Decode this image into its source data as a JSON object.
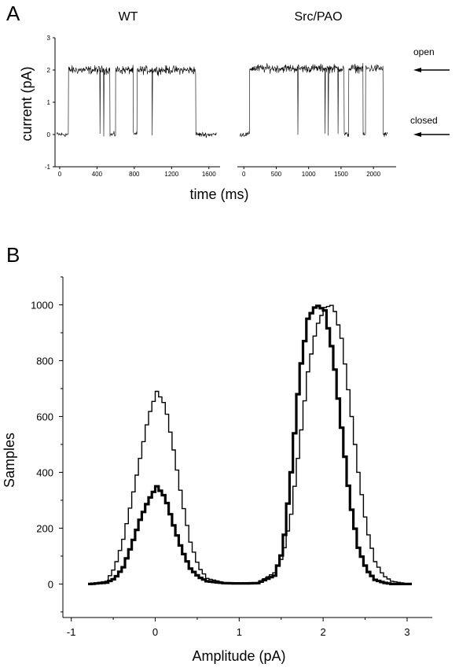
{
  "chart_data": [
    {
      "panel": "A",
      "type": "line",
      "ylabel": "current (pA)",
      "xlabel": "time (ms)",
      "ylim": [
        -1,
        3
      ],
      "yticks": [
        -1,
        0,
        1,
        2,
        3
      ],
      "state_labels": {
        "open": "open",
        "closed": "closed"
      },
      "state_levels_pA": {
        "open": 2,
        "closed": 0
      },
      "traces": [
        {
          "name": "WT",
          "xlim": [
            -50,
            1720
          ],
          "xticks": [
            0,
            400,
            800,
            1200,
            1600
          ],
          "open_level": 2.0,
          "closed_level": 0.0,
          "segments": [
            {
              "start": -30,
              "end": 95,
              "state": "closed"
            },
            {
              "start": 95,
              "end": 540,
              "state": "open"
            },
            {
              "start": 540,
              "end": 600,
              "state": "closed"
            },
            {
              "start": 600,
              "end": 790,
              "state": "open"
            },
            {
              "start": 790,
              "end": 830,
              "state": "closed"
            },
            {
              "start": 830,
              "end": 1460,
              "state": "open"
            },
            {
              "start": 1460,
              "end": 1680,
              "state": "closed"
            }
          ],
          "brief_closures": [
            430,
            470,
            990
          ]
        },
        {
          "name": "Src/PAO",
          "xlim": [
            -100,
            2350
          ],
          "xticks": [
            0,
            500,
            1000,
            1500,
            2000
          ],
          "open_level": 2.05,
          "closed_level": 0.0,
          "segments": [
            {
              "start": -60,
              "end": 90,
              "state": "closed"
            },
            {
              "start": 90,
              "end": 1550,
              "state": "open"
            },
            {
              "start": 1550,
              "end": 1620,
              "state": "closed"
            },
            {
              "start": 1620,
              "end": 1840,
              "state": "open"
            },
            {
              "start": 1840,
              "end": 1880,
              "state": "closed"
            },
            {
              "start": 1880,
              "end": 2150,
              "state": "open"
            },
            {
              "start": 2150,
              "end": 2220,
              "state": "closed"
            }
          ],
          "brief_closures": [
            830,
            1250,
            1300,
            1450
          ]
        }
      ]
    },
    {
      "panel": "B",
      "type": "line",
      "step": true,
      "xlabel": "Amplitude (pA)",
      "ylabel": "Samples",
      "xlim": [
        -1.1,
        3.3
      ],
      "ylim": [
        -120,
        1100
      ],
      "xticks": [
        -1,
        0,
        1,
        2,
        3
      ],
      "yticks": [
        0,
        200,
        400,
        600,
        800,
        1000
      ],
      "series": [
        {
          "style": "thin",
          "x": [
            -0.8,
            -0.6,
            -0.5,
            -0.4,
            -0.3,
            -0.2,
            -0.1,
            0.0,
            0.1,
            0.2,
            0.3,
            0.4,
            0.5,
            0.6,
            0.8,
            1.0,
            1.2,
            1.4,
            1.5,
            1.6,
            1.7,
            1.8,
            1.9,
            2.0,
            2.1,
            2.2,
            2.3,
            2.4,
            2.5,
            2.6,
            2.7,
            2.8,
            3.0
          ],
          "y": [
            0,
            10,
            60,
            160,
            300,
            450,
            600,
            690,
            640,
            480,
            300,
            150,
            60,
            20,
            5,
            2,
            5,
            40,
            100,
            250,
            500,
            760,
            920,
            990,
            1000,
            880,
            650,
            400,
            200,
            80,
            30,
            10,
            0
          ]
        },
        {
          "style": "thick",
          "x": [
            -0.8,
            -0.6,
            -0.5,
            -0.4,
            -0.3,
            -0.2,
            -0.1,
            0.0,
            0.1,
            0.2,
            0.3,
            0.4,
            0.5,
            0.6,
            0.8,
            1.0,
            1.2,
            1.4,
            1.5,
            1.6,
            1.7,
            1.8,
            1.9,
            2.0,
            2.1,
            2.2,
            2.3,
            2.4,
            2.5,
            2.6,
            2.7,
            2.8,
            3.0
          ],
          "y": [
            0,
            5,
            20,
            60,
            140,
            230,
            300,
            350,
            310,
            210,
            120,
            55,
            25,
            10,
            3,
            2,
            3,
            30,
            120,
            400,
            750,
            950,
            1000,
            980,
            820,
            560,
            300,
            130,
            50,
            15,
            5,
            0,
            0
          ]
        }
      ]
    }
  ]
}
